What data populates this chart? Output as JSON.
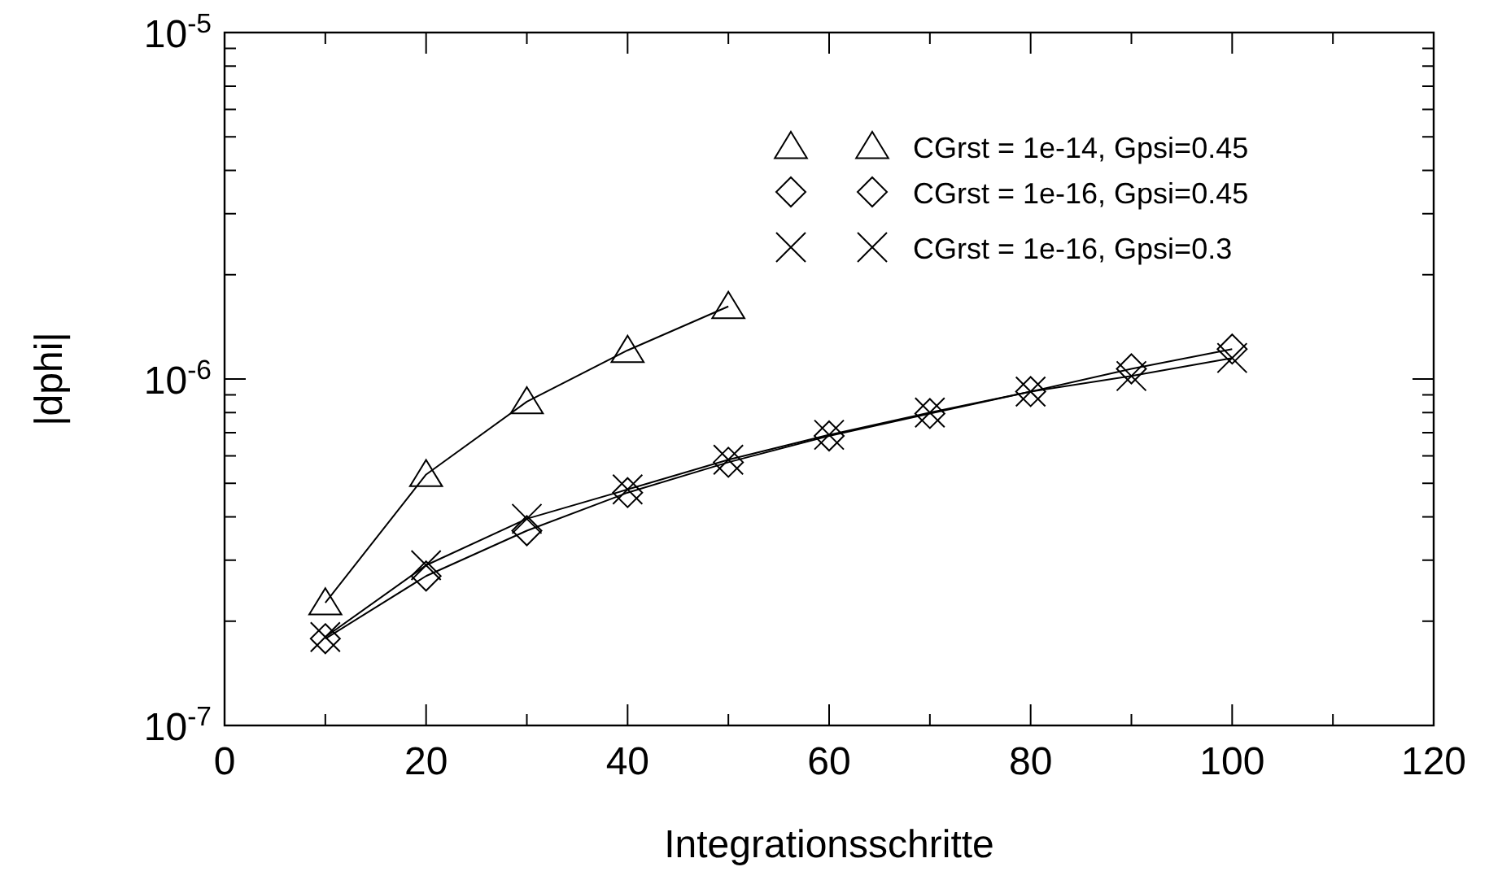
{
  "chart_data": {
    "type": "line",
    "xlabel": "Integrationsschritte",
    "ylabel": "|dphi|",
    "log": "y",
    "legend": "top right",
    "grid": false,
    "line_style": "solid",
    "xlim": [
      0,
      120
    ],
    "xticks": [
      0,
      {
        "value": 10,
        "label": null
      },
      20,
      {
        "value": 30,
        "label": null
      },
      40,
      {
        "value": 50,
        "label": null
      },
      60,
      {
        "value": 70,
        "label": null
      },
      80,
      {
        "value": 90,
        "label": null
      },
      100,
      {
        "value": 110,
        "label": null
      },
      120
    ],
    "ylim": [
      1e-07,
      1e-05
    ],
    "yticks": [
      {
        "value": 1e-07,
        "label": "10$^{-7}$"
      },
      {
        "value": 2e-07,
        "label": null
      },
      {
        "value": 3e-07,
        "label": null
      },
      {
        "value": 4e-07,
        "label": null
      },
      {
        "value": 5e-07,
        "label": null
      },
      {
        "value": 6e-07,
        "label": null
      },
      {
        "value": 7e-07,
        "label": null
      },
      {
        "value": 8e-07,
        "label": null
      },
      {
        "value": 9e-07,
        "label": null
      },
      {
        "value": 1e-06,
        "label": "10$^{-6}$"
      },
      {
        "value": 2e-06,
        "label": null
      },
      {
        "value": 3e-06,
        "label": null
      },
      {
        "value": 4e-06,
        "label": null
      },
      {
        "value": 5e-06,
        "label": null
      },
      {
        "value": 6e-06,
        "label": null
      },
      {
        "value": 7e-06,
        "label": null
      },
      {
        "value": 8e-06,
        "label": null
      },
      {
        "value": 9e-06,
        "label": null
      },
      {
        "value": 1e-05,
        "label": "10$^{-5}$"
      }
    ],
    "series": [
      {
        "name": "CGrst = 1e-14, Gpsi=0.45",
        "color": "#000000",
        "marker": "triangle",
        "x": [
          10,
          20,
          30,
          40,
          50
        ],
        "values": [
          2.26e-07,
          5.3e-07,
          8.6e-07,
          1.21e-06,
          1.62e-06
        ]
      },
      {
        "name": "CGrst = 1e-16, Gpsi=0.45",
        "color": "#000000",
        "marker": "diamond",
        "x": [
          10,
          20,
          30,
          40,
          50,
          60,
          70,
          80,
          90,
          100
        ],
        "values": [
          1.78e-07,
          2.7e-07,
          3.65e-07,
          4.7e-07,
          5.75e-07,
          6.85e-07,
          7.95e-07,
          9.2e-07,
          1.07e-06,
          1.22e-06
        ]
      },
      {
        "name": "CGrst = 1e-16, Gpsi=0.3",
        "color": "#000000",
        "marker": "cross",
        "x": [
          10,
          20,
          30,
          40,
          50,
          60,
          70,
          80,
          90,
          100
        ],
        "values": [
          1.8e-07,
          2.9e-07,
          3.95e-07,
          4.8e-07,
          5.85e-07,
          6.9e-07,
          8e-07,
          9.2e-07,
          1.02e-06,
          1.15e-06
        ]
      }
    ]
  }
}
